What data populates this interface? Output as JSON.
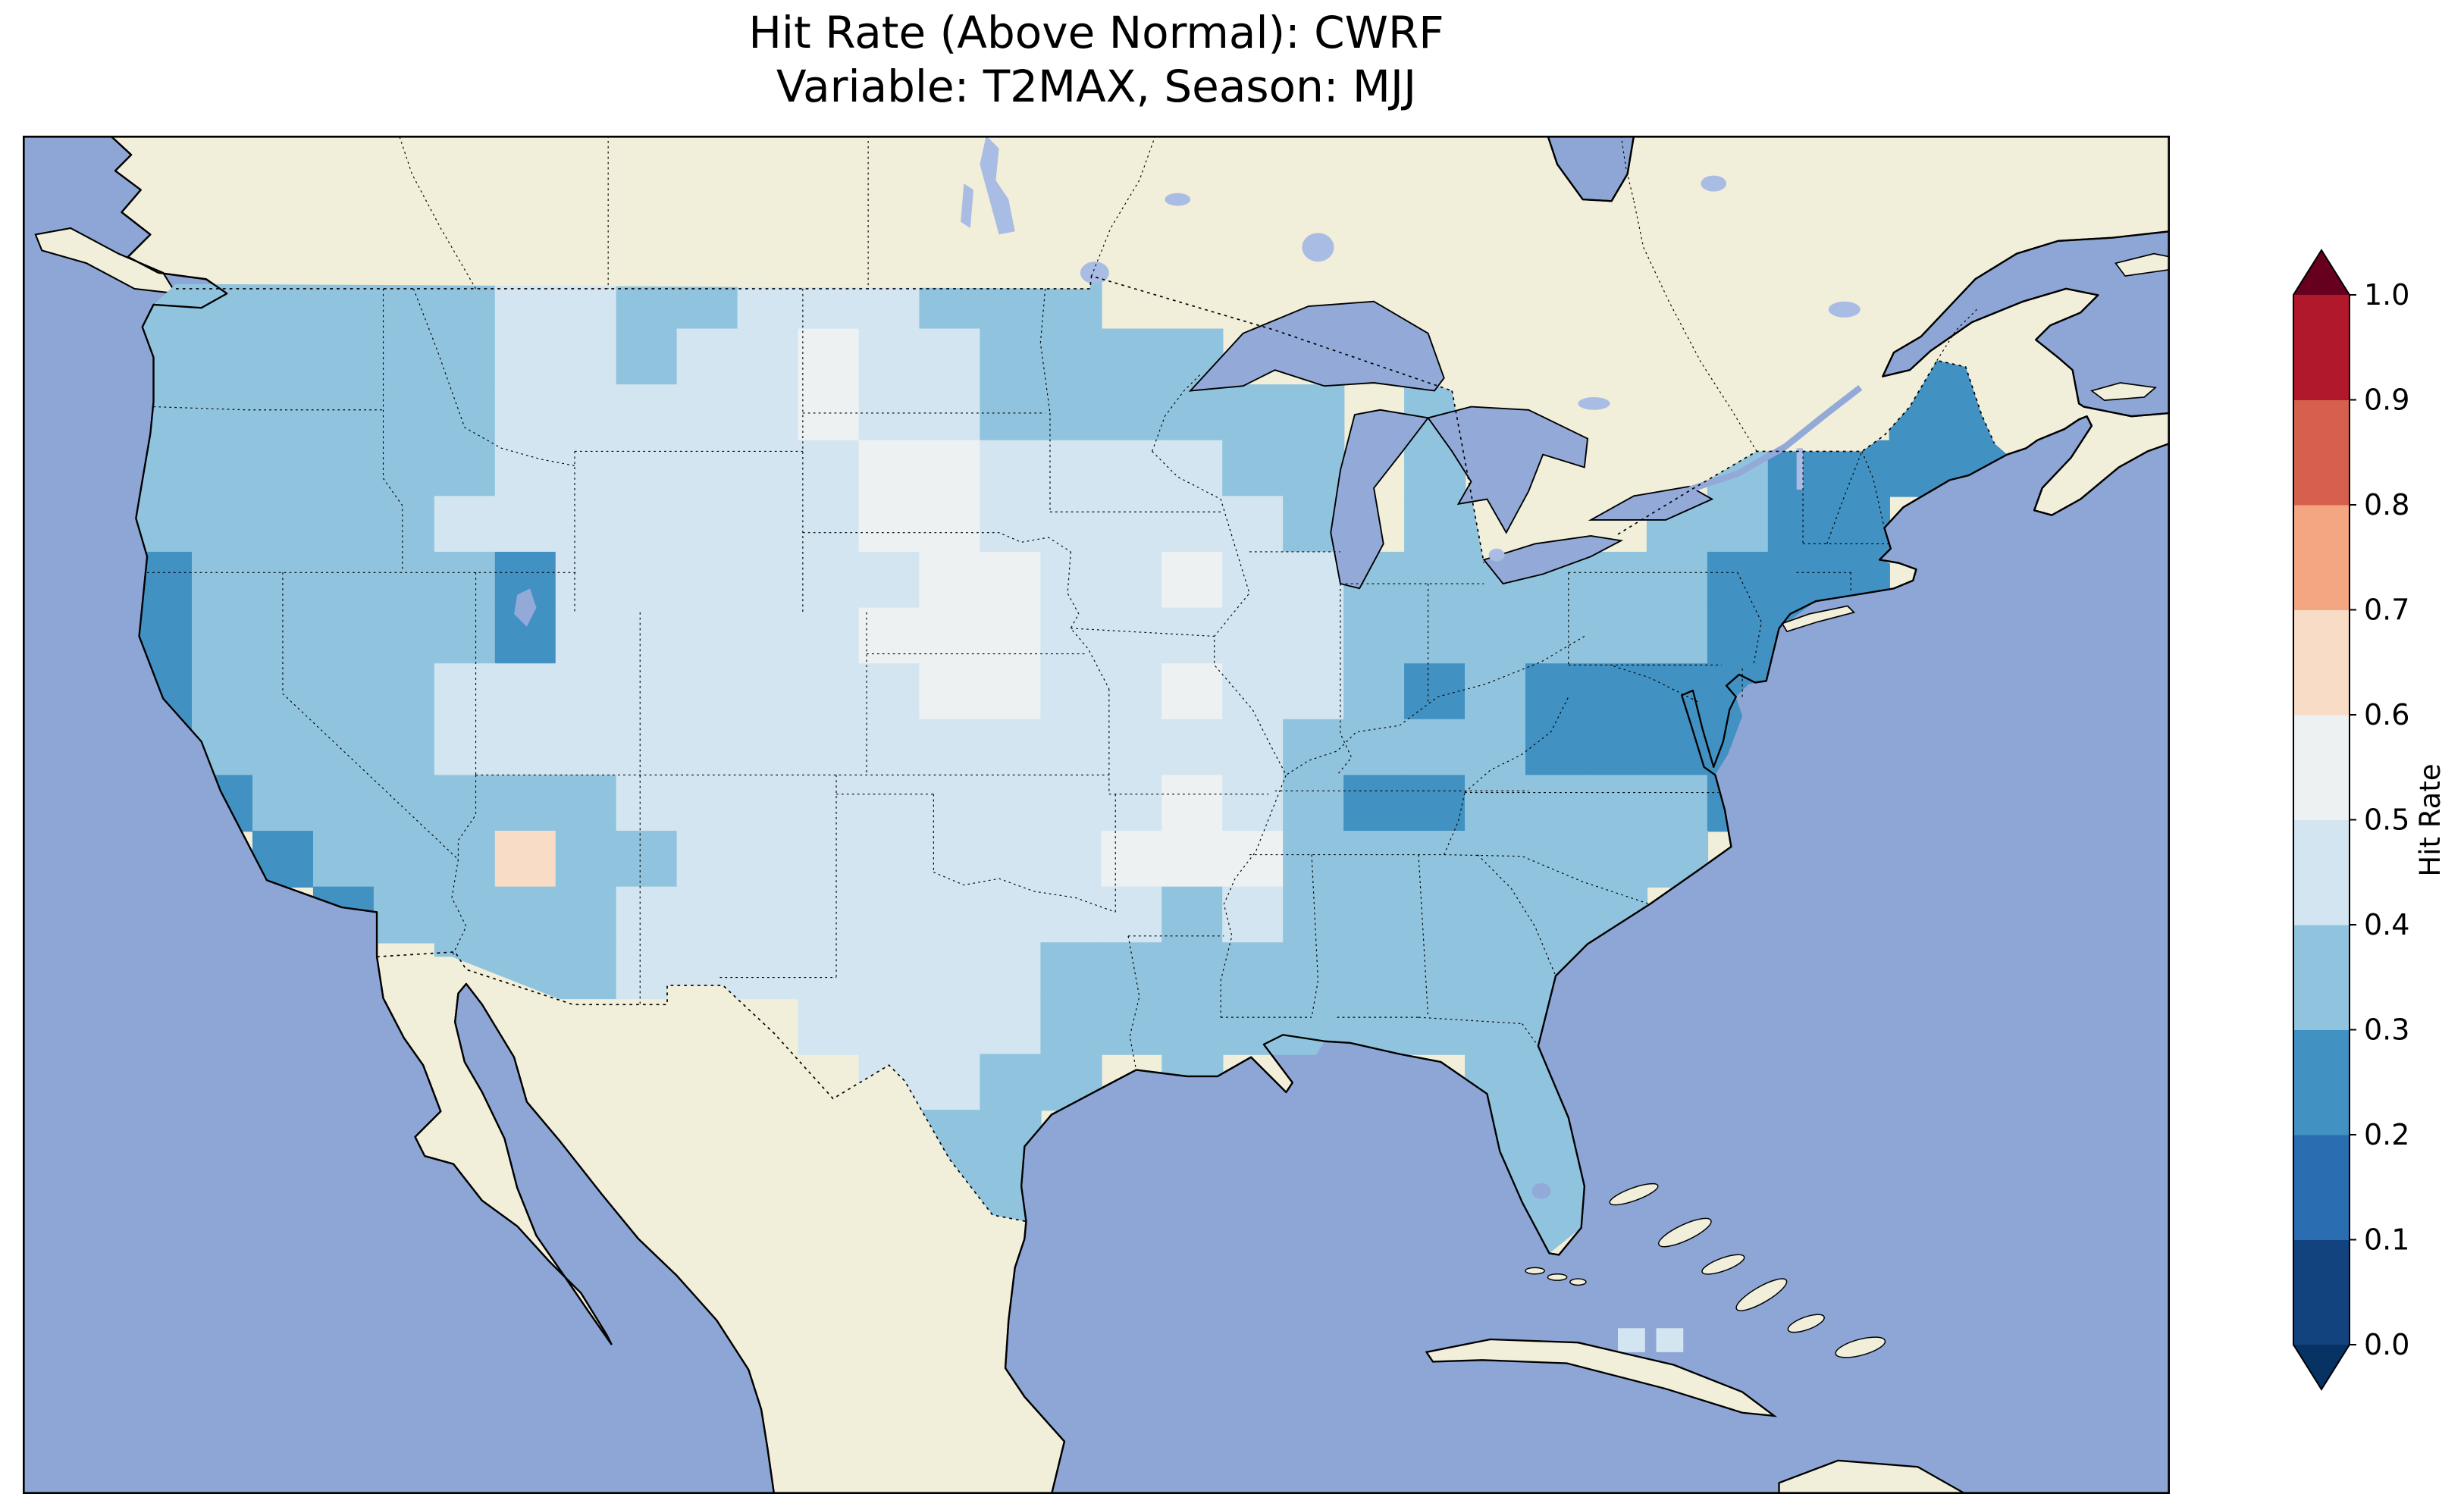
{
  "figure": {
    "title_line1": "Hit Rate (Above Normal): CWRF",
    "title_line2": "Variable: T2MAX, Season: MJJ"
  },
  "colorbar": {
    "label": "Hit Rate",
    "tick_labels_top_to_bottom": [
      "1.0",
      "0.9",
      "0.8",
      "0.7",
      "0.6",
      "0.5",
      "0.4",
      "0.3",
      "0.2",
      "0.1",
      "0.0"
    ],
    "band_colors_bottom_to_top": [
      "#12437e",
      "#2a6db0",
      "#4191c2",
      "#90c4de",
      "#d2e5f0",
      "#edf1f2",
      "#f9dcc5",
      "#f4a582",
      "#d6604d",
      "#b2182b"
    ],
    "under_arrow_color": "#063264",
    "over_arrow_color": "#67001f"
  },
  "map": {
    "colors": {
      "ocean": "#8da6d6",
      "land": "#f1eed9",
      "lake": "#93aad9",
      "canada_lake": "#a9bce3"
    }
  },
  "chart_data": {
    "type": "heatmap",
    "title": "Hit Rate (Above Normal): CWRF",
    "subtitle": "Variable: T2MAX, Season: MJJ",
    "metric": "Hit Rate (Above Normal)",
    "model": "CWRF",
    "variable": "T2MAX",
    "season": "MJJ",
    "region": "Continental United States",
    "colorbar_label": "Hit Rate",
    "colorbar_range": [
      0.0,
      1.0
    ],
    "colorbar_ticks": [
      0.0,
      0.1,
      0.2,
      0.3,
      0.4,
      0.5,
      0.6,
      0.7,
      0.8,
      0.9,
      1.0
    ],
    "colormap": "RdBu_r discrete, 0.1 bins, extend both",
    "cell_values": {
      "2": "0.2-0.3",
      "3": "0.3-0.4",
      "4": "0.4-0.5",
      "5": "0.5-0.6",
      "6": "0.6-0.7"
    },
    "cell_colors": {
      "2": "#4191c2",
      "3": "#90c4de",
      "4": "#d2e5f0",
      "5": "#edf1f2",
      "6": "#f9dcc5"
    },
    "grid": {
      "note": "Coarse transcription of the gridded hit-rate field over CONUS, ~1.9 deg lon x 1.4 deg lat per cell, rows north to south; '.' = no data (outside US mask)",
      "rows": [
        "33333334433444333.............2.",
        "3333333443445443333...........22",
        "333333344444544333333.3.......22",
        "333333344444455444433.3....32222",
        "333333444444455444443.33..3322..",
        ".23333324444445544544333333222..",
        ".2333332444445554444433333322...",
        ".233334444444455445443232222....",
        ".233334444444444444433332222....",
        "..23333334444444445432233332....",
        "...233363344444445553333333.....",
        "....2333344444444434333333......",
        "......3334444444333333333.......",
        "............4444333333333.......",
        ".............4433.3....33.......",
        "..............33.......33.......",
        "..............33.......33.......",
        "........................3......."
      ]
    }
  }
}
